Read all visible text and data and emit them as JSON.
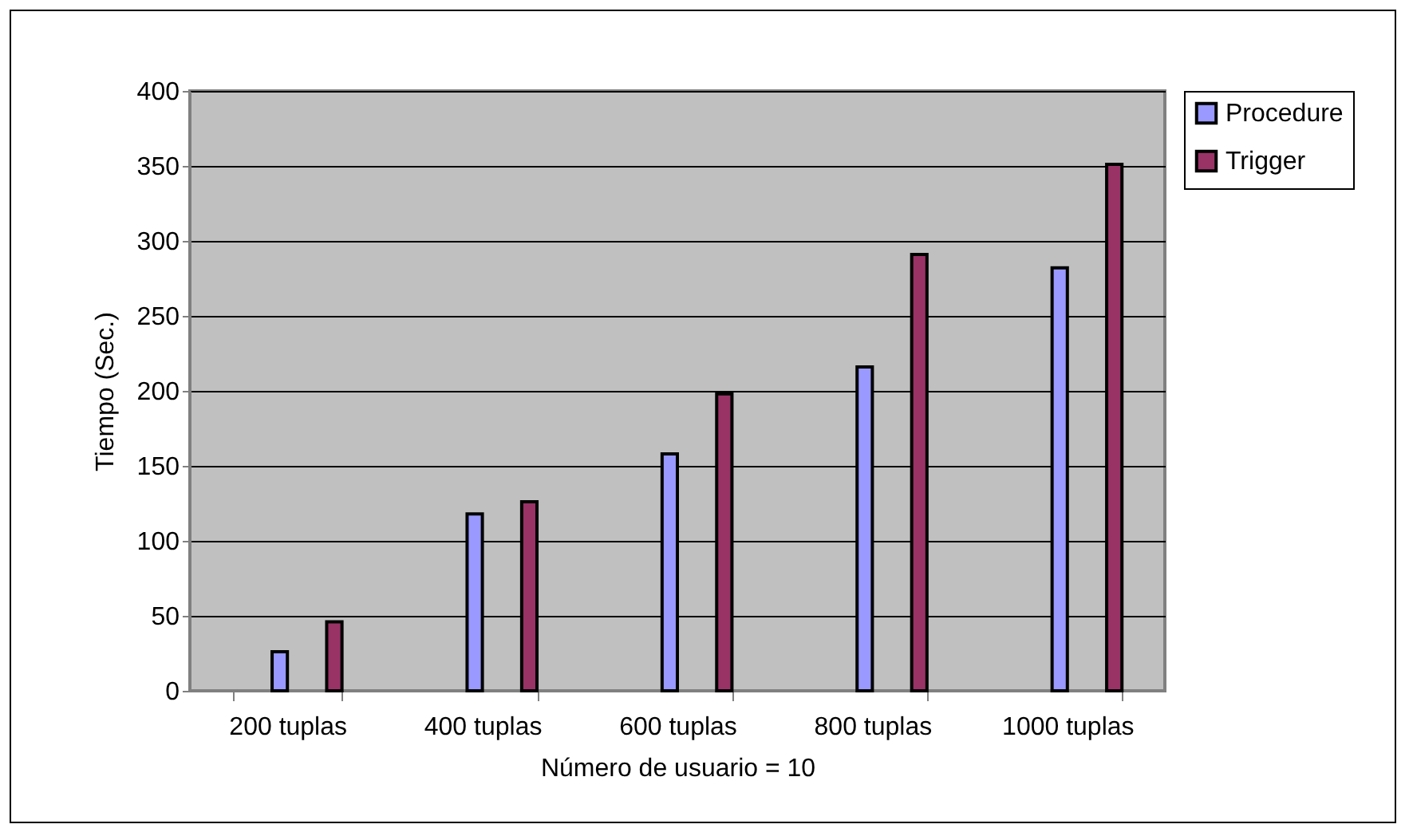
{
  "chart_data": {
    "type": "bar",
    "xlabel": "Número de usuario = 10",
    "ylabel": "Tiempo (Sec.)",
    "categories": [
      "200 tuplas",
      "400 tuplas",
      "600 tuplas",
      "800 tuplas",
      "1000 tuplas"
    ],
    "series": [
      {
        "name": "Procedure",
        "color": "#9999ff",
        "values": [
          26,
          118,
          158,
          216,
          282
        ]
      },
      {
        "name": "Trigger",
        "color": "#993366",
        "values": [
          46,
          126,
          198,
          291,
          351
        ]
      }
    ],
    "ylim": [
      0,
      400
    ],
    "yticks": [
      0,
      50,
      100,
      150,
      200,
      250,
      300,
      350,
      400
    ],
    "grid": "y",
    "legend": "right"
  }
}
